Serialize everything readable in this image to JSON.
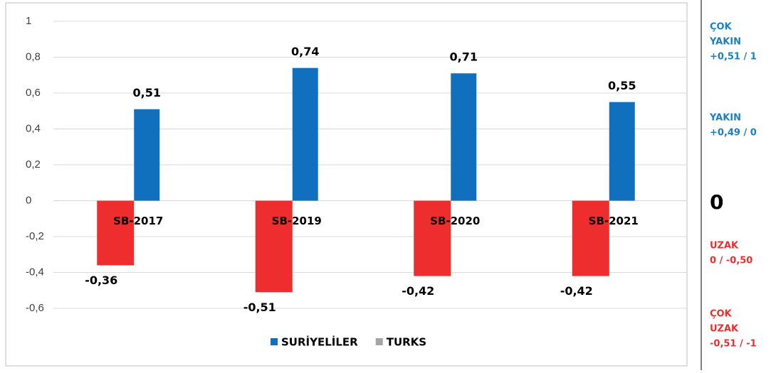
{
  "chart_data": {
    "type": "bar",
    "categories": [
      "SB-2017",
      "SB-2019",
      "SB-2020",
      "SB-2021"
    ],
    "series": [
      {
        "name": "SURİYELİLER",
        "color": "#1170bd",
        "legend_color": "#1170bd",
        "values": [
          0.51,
          0.74,
          0.71,
          0.55
        ],
        "value_labels": [
          "0,51",
          "0,74",
          "0,71",
          "0,55"
        ]
      },
      {
        "name": "TURKS",
        "color": "#ee2e2e",
        "legend_color": "#a5a5a5",
        "values": [
          -0.36,
          -0.51,
          -0.42,
          -0.42
        ],
        "value_labels": [
          "-0,36",
          "-0,51",
          "-0,42",
          "-0,42"
        ]
      }
    ],
    "ylim": [
      -0.6,
      1
    ],
    "yticks": [
      {
        "value": 1,
        "label": "1"
      },
      {
        "value": 0.8,
        "label": "0,8"
      },
      {
        "value": 0.6,
        "label": "0,6"
      },
      {
        "value": 0.4,
        "label": "0,4"
      },
      {
        "value": 0.2,
        "label": "0,2"
      },
      {
        "value": 0,
        "label": "0"
      },
      {
        "value": -0.2,
        "label": "-0,2"
      },
      {
        "value": -0.4,
        "label": "-0,4"
      },
      {
        "value": -0.6,
        "label": "-0,6"
      }
    ],
    "grid": true,
    "legend": "bottom"
  },
  "side_panel": [
    {
      "lines": [
        "ÇOK",
        "YAKIN",
        "+0,51 / 1"
      ],
      "color": "#1c7fc4"
    },
    {
      "lines": [
        "YAKIN",
        "+0,49 / 0"
      ],
      "color": "#1c7fc4"
    },
    {
      "lines": [
        "0"
      ],
      "color": "#000000"
    },
    {
      "lines": [
        "UZAK",
        "0 / -0,50"
      ],
      "color": "#ee2e2e"
    },
    {
      "lines": [
        "ÇOK",
        "UZAK",
        "-0,51 / -1"
      ],
      "color": "#ee2e2e"
    }
  ]
}
